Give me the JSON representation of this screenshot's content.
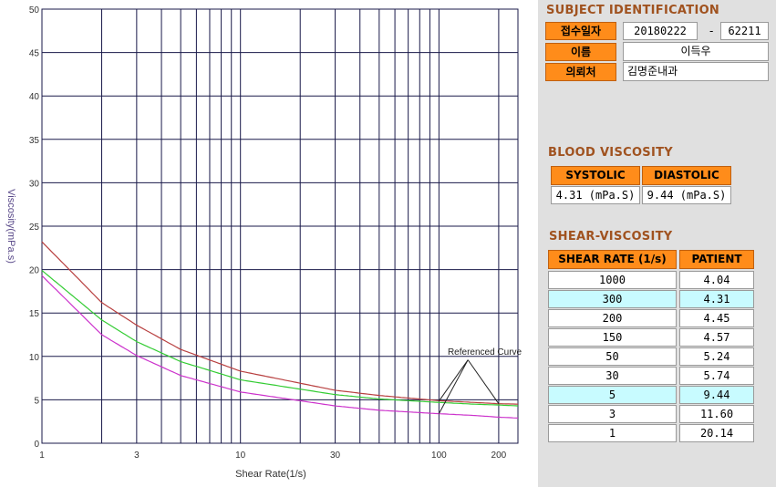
{
  "chart_data": {
    "type": "line",
    "xlabel": "Shear Rate(1/s)",
    "ylabel": "Viscosity(mPa.s)",
    "x_scale": "log",
    "xlim": [
      1,
      250
    ],
    "ylim": [
      0,
      50
    ],
    "x_ticks": [
      "1",
      "3",
      "10",
      "30",
      "100",
      "200"
    ],
    "y_ticks": [
      "0",
      "5",
      "10",
      "15",
      "20",
      "25",
      "30",
      "35",
      "40",
      "45",
      "50"
    ],
    "grid": true,
    "annotation": "Referenced Curve",
    "series": [
      {
        "color": "#b84040",
        "x": [
          1,
          2,
          3,
          5,
          10,
          30,
          50,
          100,
          150,
          200,
          250
        ],
        "y": [
          23.2,
          16.2,
          13.6,
          10.8,
          8.3,
          6.1,
          5.5,
          4.9,
          4.7,
          4.55,
          4.5
        ]
      },
      {
        "color": "#33cc33",
        "x": [
          1,
          2,
          3,
          5,
          10,
          30,
          50,
          100,
          150,
          200,
          250
        ],
        "y": [
          19.9,
          14.2,
          11.7,
          9.4,
          7.3,
          5.6,
          5.1,
          4.7,
          4.5,
          4.4,
          4.3
        ]
      },
      {
        "color": "#cc33cc",
        "x": [
          1,
          2,
          3,
          5,
          10,
          30,
          50,
          100,
          150,
          200,
          250
        ],
        "y": [
          19.3,
          12.5,
          10.1,
          7.8,
          5.9,
          4.3,
          3.8,
          3.4,
          3.2,
          3.0,
          2.9
        ]
      }
    ]
  },
  "subject": {
    "title": "SUBJECT IDENTIFICATION",
    "date_label": "접수일자",
    "date_value": "20180222",
    "dash": "-",
    "id_value": "62211",
    "name_label": "이름",
    "name_value": "이득우",
    "referrer_label": "의뢰처",
    "referrer_value": "김명준내과"
  },
  "blood": {
    "title": "BLOOD VISCOSITY",
    "systolic_label": "SYSTOLIC",
    "diastolic_label": "DIASTOLIC",
    "systolic_value": "4.31 (mPa.S)",
    "diastolic_value": "9.44 (mPa.S)"
  },
  "shear": {
    "title": "SHEAR-VISCOSITY",
    "col_rate": "SHEAR RATE (1/s)",
    "col_patient": "PATIENT",
    "rows": [
      {
        "rate": "1000",
        "patient": "4.04",
        "highlight": false
      },
      {
        "rate": "300",
        "patient": "4.31",
        "highlight": true
      },
      {
        "rate": "200",
        "patient": "4.45",
        "highlight": false
      },
      {
        "rate": "150",
        "patient": "4.57",
        "highlight": false
      },
      {
        "rate": "50",
        "patient": "5.24",
        "highlight": false
      },
      {
        "rate": "30",
        "patient": "5.74",
        "highlight": false
      },
      {
        "rate": "5",
        "patient": "9.44",
        "highlight": true
      },
      {
        "rate": "3",
        "patient": "11.60",
        "highlight": false
      },
      {
        "rate": "1",
        "patient": "20.14",
        "highlight": false
      }
    ]
  }
}
